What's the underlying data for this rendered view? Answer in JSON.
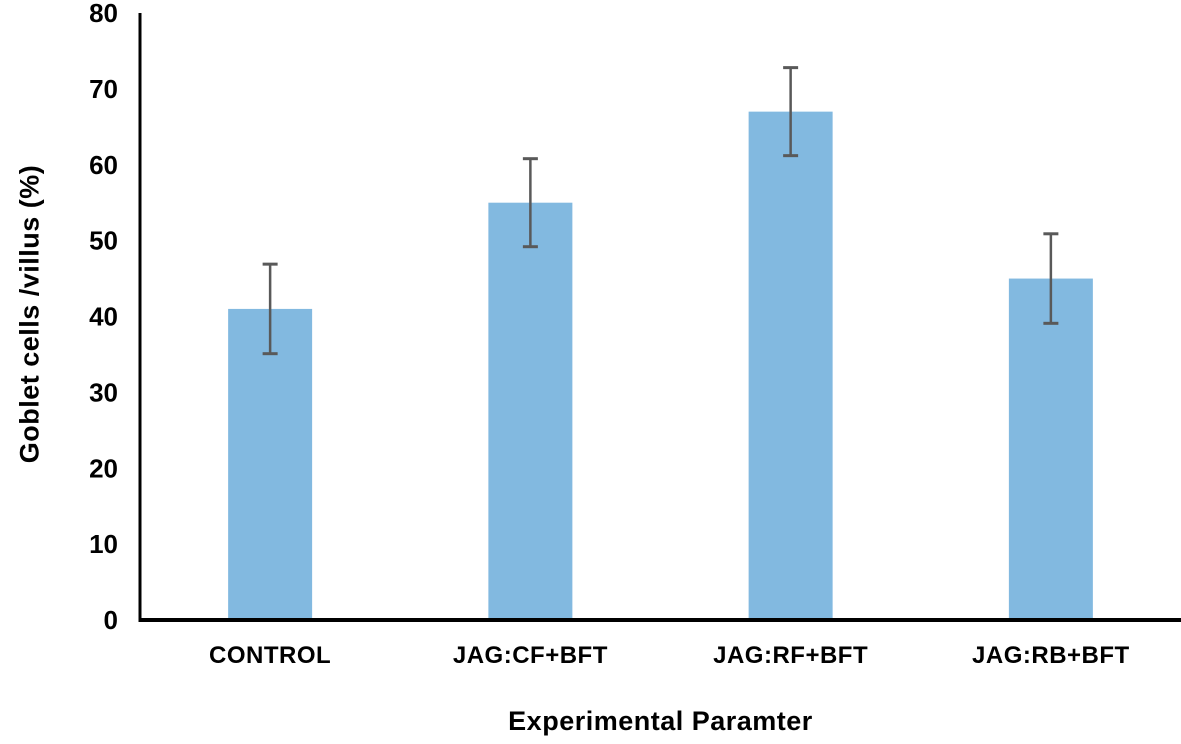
{
  "chart_data": {
    "type": "bar",
    "title": "",
    "categories": [
      "CONTROL",
      "JAG:CF+BFT",
      "JAG:RF+BFT",
      "JAG:RB+BFT"
    ],
    "values": [
      41,
      55,
      67,
      45
    ],
    "errors": [
      5.9,
      5.8,
      5.8,
      5.9
    ],
    "xlabel": "Experimental Paramter",
    "ylabel": "Goblet cells /villus (%)",
    "ylim": [
      0,
      80
    ],
    "yticks": [
      0,
      10,
      20,
      30,
      40,
      50,
      60,
      70,
      80
    ],
    "grid": false,
    "legend": "none",
    "colors": {
      "bar": "#82B9E0",
      "error_bar": "#595959",
      "axis": "#000000",
      "text": "#000000",
      "background": "#ffffff"
    }
  }
}
